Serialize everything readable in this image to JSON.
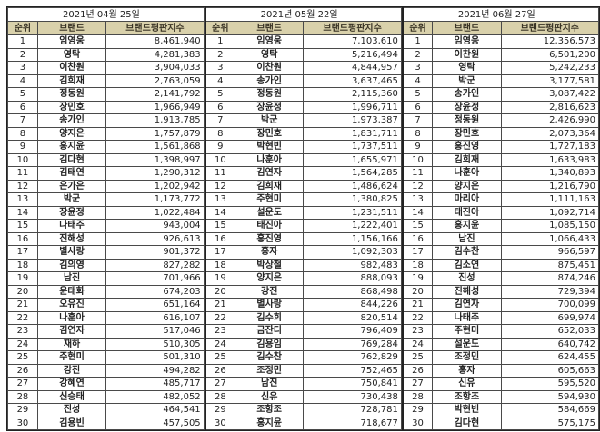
{
  "columns": {
    "rank": "순위",
    "brand": "브랜드",
    "score": "브랜드평판지수"
  },
  "tables": [
    {
      "date": "2021년 04월 25일",
      "rows": [
        {
          "rank": "1",
          "brand": "임영웅",
          "score": "8,461,940"
        },
        {
          "rank": "2",
          "brand": "영탁",
          "score": "4,281,383"
        },
        {
          "rank": "3",
          "brand": "이찬원",
          "score": "3,904,033"
        },
        {
          "rank": "4",
          "brand": "김희재",
          "score": "2,763,059"
        },
        {
          "rank": "5",
          "brand": "정동원",
          "score": "2,141,792"
        },
        {
          "rank": "6",
          "brand": "장민호",
          "score": "1,966,949"
        },
        {
          "rank": "7",
          "brand": "송가인",
          "score": "1,913,785"
        },
        {
          "rank": "8",
          "brand": "양지은",
          "score": "1,757,879"
        },
        {
          "rank": "9",
          "brand": "홍지윤",
          "score": "1,561,868"
        },
        {
          "rank": "10",
          "brand": "김다현",
          "score": "1,398,997"
        },
        {
          "rank": "11",
          "brand": "김태연",
          "score": "1,290,312"
        },
        {
          "rank": "12",
          "brand": "은가은",
          "score": "1,202,942"
        },
        {
          "rank": "13",
          "brand": "박군",
          "score": "1,173,772"
        },
        {
          "rank": "14",
          "brand": "장윤정",
          "score": "1,022,484"
        },
        {
          "rank": "15",
          "brand": "나태주",
          "score": "943,004"
        },
        {
          "rank": "16",
          "brand": "진해성",
          "score": "926,613"
        },
        {
          "rank": "17",
          "brand": "별사랑",
          "score": "901,372"
        },
        {
          "rank": "18",
          "brand": "김의영",
          "score": "827,282"
        },
        {
          "rank": "19",
          "brand": "남진",
          "score": "701,966"
        },
        {
          "rank": "20",
          "brand": "윤태화",
          "score": "674,203"
        },
        {
          "rank": "21",
          "brand": "오유진",
          "score": "651,164"
        },
        {
          "rank": "22",
          "brand": "나훈아",
          "score": "616,107"
        },
        {
          "rank": "23",
          "brand": "김연자",
          "score": "517,046"
        },
        {
          "rank": "24",
          "brand": "재하",
          "score": "510,305"
        },
        {
          "rank": "25",
          "brand": "주현미",
          "score": "501,310"
        },
        {
          "rank": "26",
          "brand": "강진",
          "score": "494,282"
        },
        {
          "rank": "27",
          "brand": "강혜연",
          "score": "485,717"
        },
        {
          "rank": "28",
          "brand": "신승태",
          "score": "482,052"
        },
        {
          "rank": "29",
          "brand": "진성",
          "score": "464,541"
        },
        {
          "rank": "30",
          "brand": "김용빈",
          "score": "457,505"
        }
      ]
    },
    {
      "date": "2021년 05월 22일",
      "rows": [
        {
          "rank": "1",
          "brand": "임영웅",
          "score": "7,103,610"
        },
        {
          "rank": "2",
          "brand": "영탁",
          "score": "5,216,494"
        },
        {
          "rank": "3",
          "brand": "이찬원",
          "score": "4,844,957"
        },
        {
          "rank": "4",
          "brand": "송가인",
          "score": "3,637,465"
        },
        {
          "rank": "5",
          "brand": "정동원",
          "score": "2,115,360"
        },
        {
          "rank": "6",
          "brand": "장윤정",
          "score": "1,996,711"
        },
        {
          "rank": "7",
          "brand": "박군",
          "score": "1,973,387"
        },
        {
          "rank": "8",
          "brand": "장민호",
          "score": "1,831,711"
        },
        {
          "rank": "9",
          "brand": "박현빈",
          "score": "1,737,511"
        },
        {
          "rank": "10",
          "brand": "나훈아",
          "score": "1,655,971"
        },
        {
          "rank": "11",
          "brand": "김연자",
          "score": "1,564,285"
        },
        {
          "rank": "12",
          "brand": "김희재",
          "score": "1,486,624"
        },
        {
          "rank": "13",
          "brand": "주현미",
          "score": "1,380,825"
        },
        {
          "rank": "14",
          "brand": "설운도",
          "score": "1,231,511"
        },
        {
          "rank": "15",
          "brand": "태진아",
          "score": "1,222,401"
        },
        {
          "rank": "16",
          "brand": "홍진영",
          "score": "1,156,166"
        },
        {
          "rank": "17",
          "brand": "홍자",
          "score": "1,092,303"
        },
        {
          "rank": "18",
          "brand": "박상철",
          "score": "982,483"
        },
        {
          "rank": "19",
          "brand": "양지은",
          "score": "888,093"
        },
        {
          "rank": "20",
          "brand": "강진",
          "score": "868,498"
        },
        {
          "rank": "21",
          "brand": "별사랑",
          "score": "844,226"
        },
        {
          "rank": "22",
          "brand": "김수희",
          "score": "820,514"
        },
        {
          "rank": "23",
          "brand": "금잔디",
          "score": "796,409"
        },
        {
          "rank": "24",
          "brand": "김용임",
          "score": "769,284"
        },
        {
          "rank": "25",
          "brand": "김수찬",
          "score": "762,829"
        },
        {
          "rank": "26",
          "brand": "조정민",
          "score": "752,465"
        },
        {
          "rank": "27",
          "brand": "남진",
          "score": "750,841"
        },
        {
          "rank": "28",
          "brand": "신유",
          "score": "730,438"
        },
        {
          "rank": "29",
          "brand": "조항조",
          "score": "728,781"
        },
        {
          "rank": "30",
          "brand": "홍지윤",
          "score": "718,677"
        }
      ]
    },
    {
      "date": "2021년 06월 27일",
      "rows": [
        {
          "rank": "1",
          "brand": "임영웅",
          "score": "12,356,573"
        },
        {
          "rank": "2",
          "brand": "이찬원",
          "score": "6,501,200"
        },
        {
          "rank": "3",
          "brand": "영탁",
          "score": "5,242,233"
        },
        {
          "rank": "4",
          "brand": "박군",
          "score": "3,177,581"
        },
        {
          "rank": "5",
          "brand": "송가인",
          "score": "3,087,422"
        },
        {
          "rank": "6",
          "brand": "장윤정",
          "score": "2,816,623"
        },
        {
          "rank": "7",
          "brand": "정동원",
          "score": "2,426,990"
        },
        {
          "rank": "8",
          "brand": "장민호",
          "score": "2,073,364"
        },
        {
          "rank": "9",
          "brand": "홍진영",
          "score": "1,727,183"
        },
        {
          "rank": "10",
          "brand": "김희재",
          "score": "1,633,983"
        },
        {
          "rank": "11",
          "brand": "나훈아",
          "score": "1,340,893"
        },
        {
          "rank": "12",
          "brand": "양지은",
          "score": "1,216,790"
        },
        {
          "rank": "13",
          "brand": "마리아",
          "score": "1,111,163"
        },
        {
          "rank": "14",
          "brand": "태진아",
          "score": "1,092,714"
        },
        {
          "rank": "15",
          "brand": "홍지윤",
          "score": "1,085,150"
        },
        {
          "rank": "16",
          "brand": "남진",
          "score": "1,066,433"
        },
        {
          "rank": "17",
          "brand": "김수찬",
          "score": "966,597"
        },
        {
          "rank": "18",
          "brand": "김소연",
          "score": "875,451"
        },
        {
          "rank": "19",
          "brand": "진성",
          "score": "874,246"
        },
        {
          "rank": "20",
          "brand": "진해성",
          "score": "729,394"
        },
        {
          "rank": "21",
          "brand": "김연자",
          "score": "700,099"
        },
        {
          "rank": "22",
          "brand": "나태주",
          "score": "699,974"
        },
        {
          "rank": "23",
          "brand": "주현미",
          "score": "652,033"
        },
        {
          "rank": "24",
          "brand": "설운도",
          "score": "640,742"
        },
        {
          "rank": "25",
          "brand": "조정민",
          "score": "624,455"
        },
        {
          "rank": "26",
          "brand": "홍자",
          "score": "605,663"
        },
        {
          "rank": "27",
          "brand": "신유",
          "score": "595,520"
        },
        {
          "rank": "28",
          "brand": "조항조",
          "score": "594,930"
        },
        {
          "rank": "29",
          "brand": "박현빈",
          "score": "584,669"
        },
        {
          "rank": "30",
          "brand": "김다현",
          "score": "575,175"
        }
      ]
    }
  ],
  "colors": {
    "header_bg": "#d9d1ab",
    "border": "#4a4a4a",
    "text": "#222222"
  }
}
